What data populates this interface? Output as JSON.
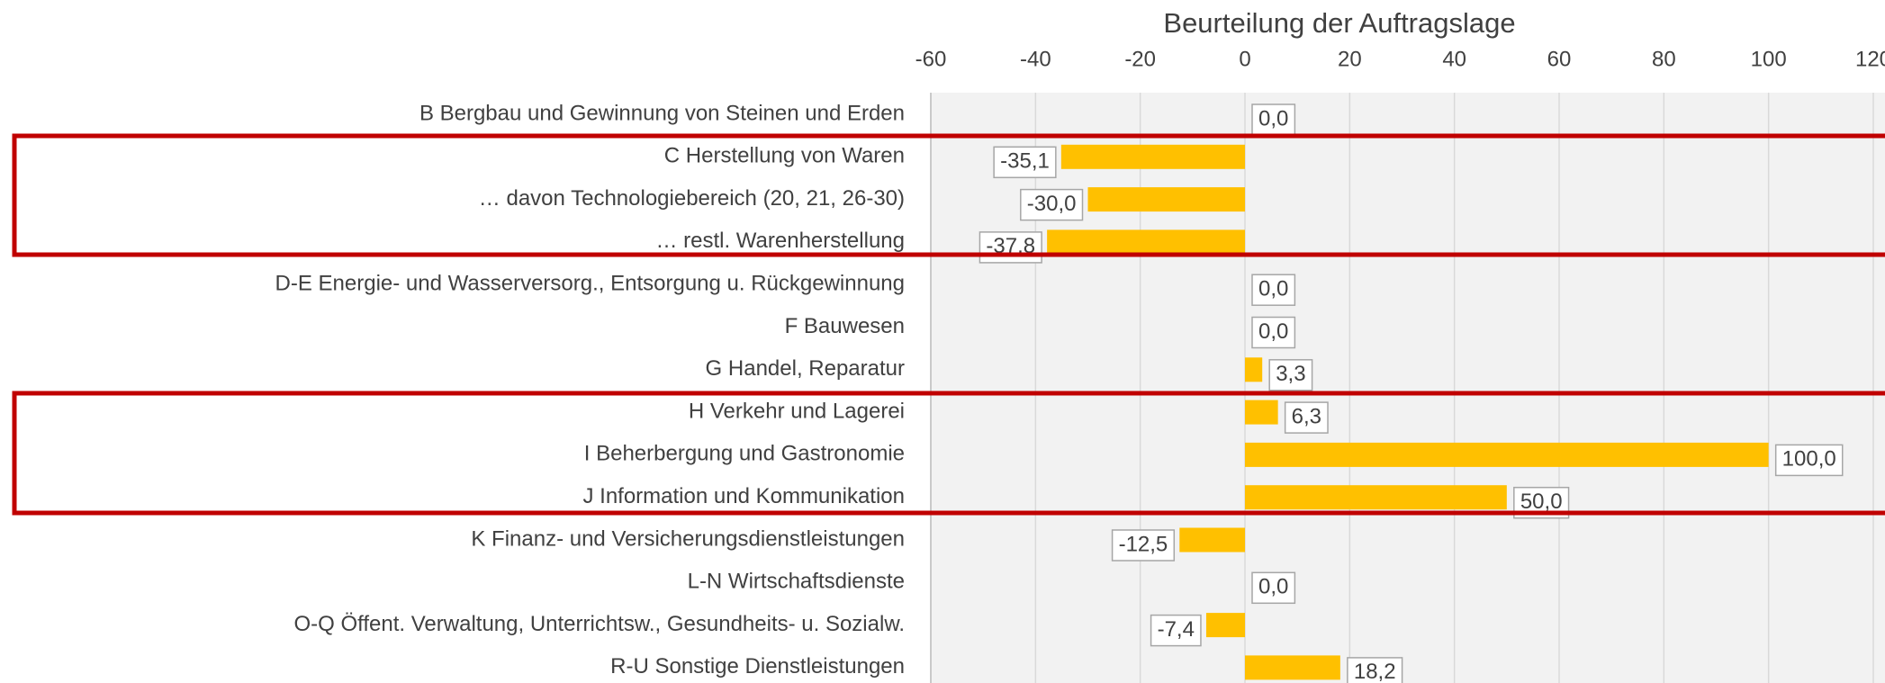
{
  "chart_data": {
    "type": "hbar",
    "title": "Beurteilung der Auftragslage",
    "categories": [
      "B Bergbau und Gewinnung von Steinen und Erden",
      "C Herstellung von Waren",
      "… davon Technologiebereich (20, 21, 26-30)",
      "… restl. Warenherstellung",
      "D-E Energie- und Wasserversorg., Entsorgung u. Rückgewinnung",
      "F Bauwesen",
      "G Handel, Reparatur",
      "H Verkehr und Lagerei",
      "I Beherbergung und Gastronomie",
      "J Information und Kommunikation",
      "K Finanz- und Versicherungsdienstleistungen",
      "L-N Wirtschaftsdienste",
      "O-Q Öffent. Verwaltung, Unterrichtsw., Gesundheits- u. Sozialw.",
      "R-U Sonstige Dienstleistungen"
    ],
    "values": [
      0,
      -35.1,
      -30.0,
      -37.8,
      0,
      0,
      3.3,
      6.3,
      100,
      50,
      -12.5,
      0,
      -7.4,
      18.2
    ],
    "value_labels": [
      "0,0",
      "-35,1",
      "-30,0",
      "-37,8",
      "0,0",
      "0,0",
      "3,3",
      "6,3",
      "100,0",
      "50,0",
      "-12,5",
      "0,0",
      "-7,4",
      "18,2"
    ],
    "color": "#ffc000",
    "xlim": [
      -60,
      120
    ],
    "xticks": [
      -60,
      -40,
      -20,
      0,
      20,
      40,
      60,
      80,
      100,
      120
    ],
    "grid": true
  }
}
